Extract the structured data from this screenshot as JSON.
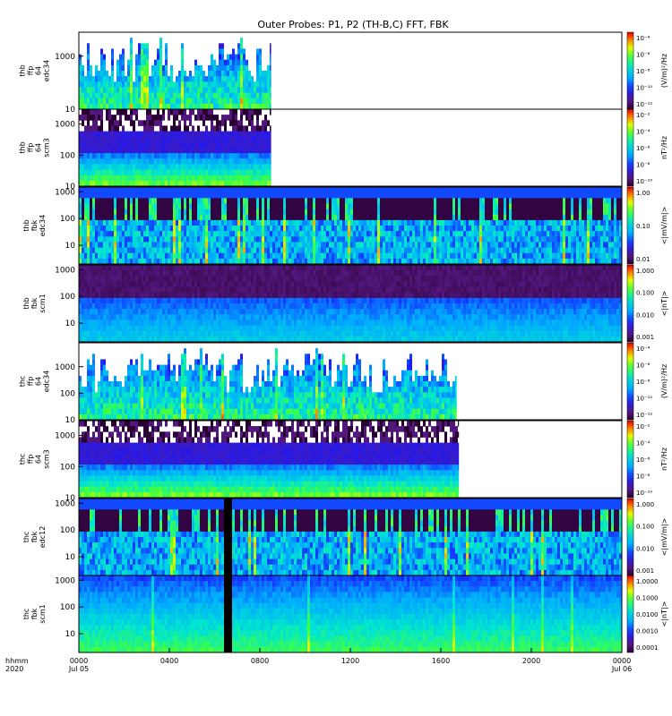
{
  "title": "Outer Probes: P1, P2 (TH-B,C) FFT, FBK",
  "x_axis": {
    "row_label_1": "hhmm",
    "row_label_2": "2020",
    "ticks": [
      {
        "hour": 0,
        "label": "0000",
        "date": "Jul 05"
      },
      {
        "hour": 4,
        "label": "0400",
        "date": ""
      },
      {
        "hour": 8,
        "label": "0800",
        "date": ""
      },
      {
        "hour": 12,
        "label": "1200",
        "date": ""
      },
      {
        "hour": 16,
        "label": "1600",
        "date": ""
      },
      {
        "hour": 20,
        "label": "2000",
        "date": ""
      },
      {
        "hour": 24,
        "label": "0000",
        "date": "Jul 06"
      }
    ]
  },
  "chart_data": [
    {
      "type": "heatmap",
      "ylabel": [
        "thb",
        "ffp",
        "64",
        "edc34"
      ],
      "yticks": [
        {
          "v": 10,
          "l": "10"
        },
        {
          "v": 1000,
          "l": "1000"
        }
      ],
      "ylog": true,
      "ylim": [
        10,
        8000
      ],
      "colorbar": {
        "label": "(V/m)²/Hz",
        "ticks": [
          "10⁻⁴",
          "10⁻⁶",
          "10⁻⁸",
          "10⁻¹⁰",
          "10⁻¹²"
        ]
      },
      "data_end_hour": 8.5,
      "style": "spiky"
    },
    {
      "type": "heatmap",
      "ylabel": [
        "thb",
        "ffp",
        "64",
        "scm3"
      ],
      "yticks": [
        {
          "v": 10,
          "l": "10"
        },
        {
          "v": 100,
          "l": "100"
        },
        {
          "v": 1000,
          "l": "1000"
        }
      ],
      "ylog": true,
      "ylim": [
        10,
        3000
      ],
      "colorbar": {
        "label": "nT²/Hz",
        "ticks": [
          "10⁻²",
          "10⁻⁴",
          "10⁻⁶",
          "10⁻⁸",
          "10⁻¹⁰"
        ]
      },
      "data_end_hour": 8.5,
      "style": "scm"
    },
    {
      "type": "heatmap",
      "ylabel": [
        "thb",
        "fbk",
        "edc34"
      ],
      "yticks": [
        {
          "v": 10,
          "l": "10"
        },
        {
          "v": 100,
          "l": "100"
        },
        {
          "v": 1000,
          "l": "1000"
        }
      ],
      "ylog": true,
      "ylim": [
        2,
        1500
      ],
      "colorbar": {
        "label": "<|mV/m|>",
        "ticks": [
          "1.00",
          "0.10",
          "0.01"
        ]
      },
      "data_end_hour": 24,
      "style": "fbk_e"
    },
    {
      "type": "heatmap",
      "ylabel": [
        "thb",
        "fbk",
        "scm1"
      ],
      "yticks": [
        {
          "v": 10,
          "l": "10"
        },
        {
          "v": 100,
          "l": "100"
        },
        {
          "v": 1000,
          "l": "1000"
        }
      ],
      "ylog": true,
      "ylim": [
        2,
        1500
      ],
      "colorbar": {
        "label": "<|nT|>",
        "ticks": [
          "1.000",
          "0.100",
          "0.010",
          "0.001"
        ]
      },
      "data_end_hour": 24,
      "style": "fbk_b"
    },
    {
      "type": "heatmap",
      "ylabel": [
        "thc",
        "ffp",
        "64",
        "edc34"
      ],
      "yticks": [
        {
          "v": 10,
          "l": "10"
        },
        {
          "v": 100,
          "l": "100"
        },
        {
          "v": 1000,
          "l": "1000"
        }
      ],
      "ylog": true,
      "ylim": [
        10,
        8000
      ],
      "colorbar": {
        "label": "(V/m)²/Hz",
        "ticks": [
          "10⁻⁴",
          "10⁻⁶",
          "10⁻⁸",
          "10⁻¹⁰",
          "10⁻¹²"
        ]
      },
      "data_end_hour": 16.7,
      "style": "spiky"
    },
    {
      "type": "heatmap",
      "ylabel": [
        "thc",
        "ffp",
        "64",
        "scm3"
      ],
      "yticks": [
        {
          "v": 10,
          "l": "10"
        },
        {
          "v": 100,
          "l": "100"
        },
        {
          "v": 1000,
          "l": "1000"
        }
      ],
      "ylog": true,
      "ylim": [
        10,
        3000
      ],
      "colorbar": {
        "label": "nT²/Hz",
        "ticks": [
          "10⁻²",
          "10⁻⁴",
          "10⁻⁶",
          "10⁻⁸",
          "10⁻¹⁰"
        ]
      },
      "data_end_hour": 16.8,
      "style": "scm"
    },
    {
      "type": "heatmap",
      "ylabel": [
        "thc",
        "fbk",
        "edc12"
      ],
      "yticks": [
        {
          "v": 10,
          "l": "10"
        },
        {
          "v": 100,
          "l": "100"
        },
        {
          "v": 1000,
          "l": "1000"
        }
      ],
      "ylog": true,
      "ylim": [
        2,
        1500
      ],
      "colorbar": {
        "label": "<|mV/m|>",
        "ticks": [
          "1.000",
          "0.100",
          "0.010",
          "0.001"
        ]
      },
      "data_end_hour": 24,
      "style": "fbk_e2",
      "gap_hours": [
        6.3,
        6.75
      ]
    },
    {
      "type": "heatmap",
      "ylabel": [
        "thc",
        "fbk",
        "scm1"
      ],
      "yticks": [
        {
          "v": 10,
          "l": "10"
        },
        {
          "v": 100,
          "l": "100"
        },
        {
          "v": 1000,
          "l": "1000"
        }
      ],
      "ylog": true,
      "ylim": [
        2,
        1500
      ],
      "colorbar": {
        "label": "<|nT|>",
        "ticks": [
          "1.0000",
          "0.1000",
          "0.0100",
          "0.0010",
          "0.0001"
        ]
      },
      "data_end_hour": 24,
      "style": "fbk_b2",
      "gap_hours": [
        6.3,
        6.75
      ]
    }
  ]
}
